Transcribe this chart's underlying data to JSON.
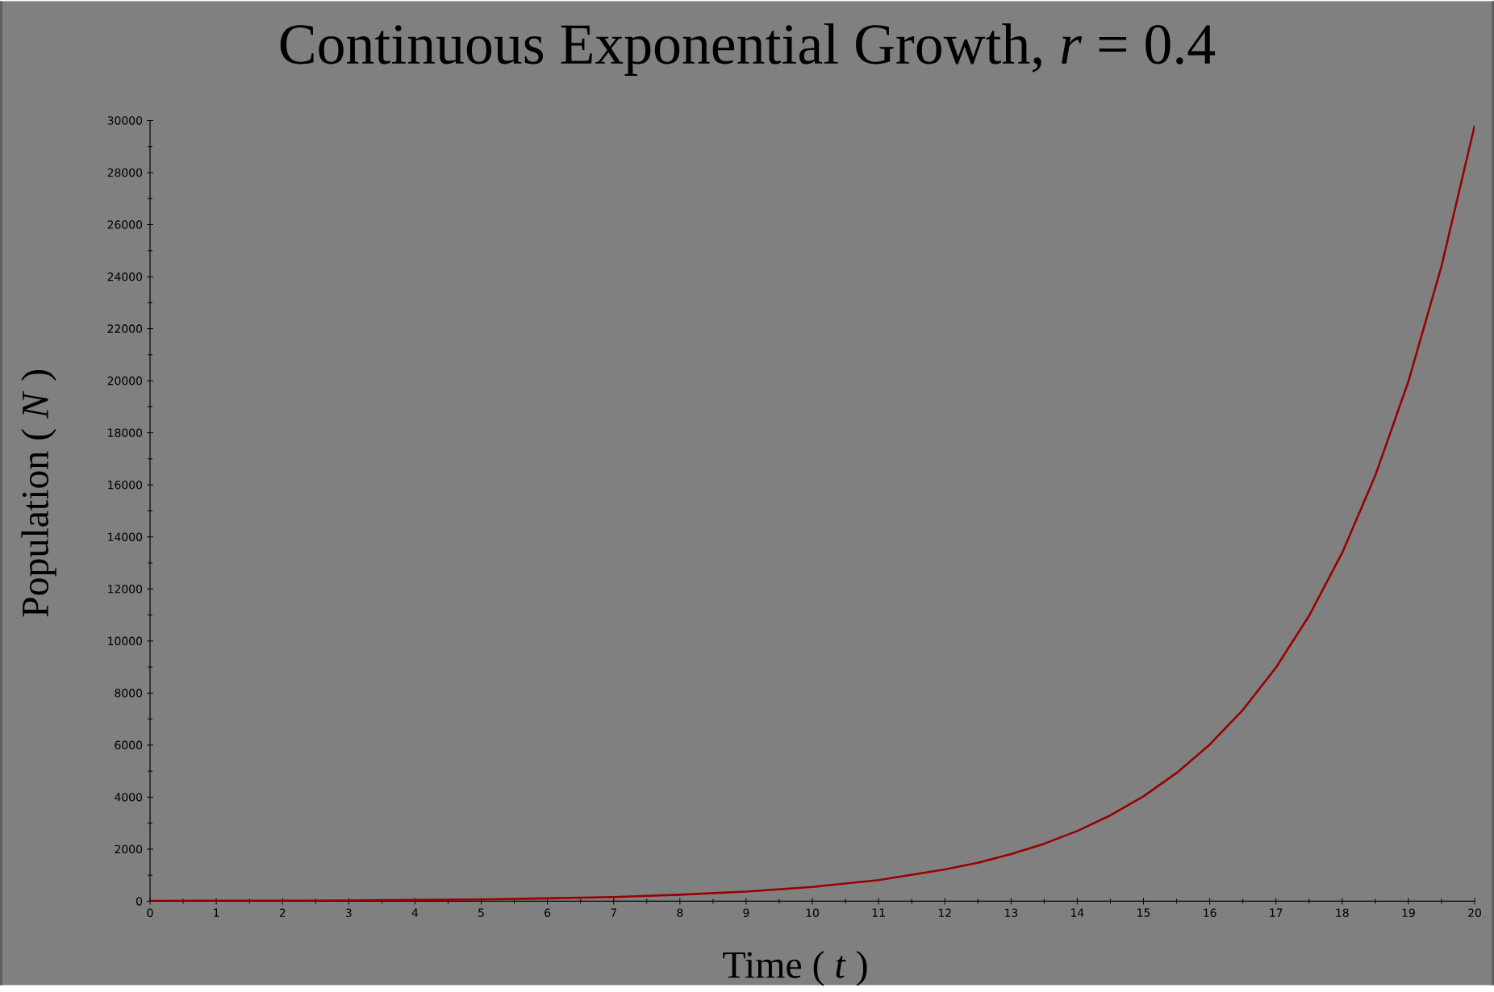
{
  "chart_data": {
    "type": "line",
    "title": "Continuous Exponential Growth, *r* = 0.4",
    "xlabel": "Time ( *t* )",
    "ylabel": "Population ( *N* )",
    "x": [
      0,
      1,
      2,
      3,
      4,
      5,
      6,
      7,
      8,
      9,
      10,
      11,
      12,
      12.5,
      13,
      13.5,
      14,
      14.5,
      15,
      15.5,
      16,
      16.5,
      17,
      17.5,
      18,
      18.5,
      19,
      19.5,
      20
    ],
    "series": [
      {
        "color": "#990000",
        "values": [
          10,
          20,
          20,
          30,
          50,
          70,
          110,
          160,
          250,
          370,
          550,
          810,
          1220,
          1480,
          1810,
          2210,
          2700,
          3300,
          4030,
          4930,
          6020,
          7350,
          8980,
          10970,
          13390,
          16360,
          19980,
          24410,
          29810
        ]
      }
    ],
    "xlim": [
      0,
      20
    ],
    "xticks": [
      0,
      1,
      2,
      3,
      4,
      5,
      6,
      7,
      8,
      9,
      10,
      11,
      12,
      13,
      14,
      15,
      16,
      17,
      18,
      19,
      20
    ],
    "ylim": [
      0,
      30000
    ],
    "yticks": [
      0,
      2000,
      4000,
      6000,
      8000,
      10000,
      12000,
      14000,
      16000,
      18000,
      20000,
      22000,
      24000,
      26000,
      28000,
      30000
    ],
    "grid": false,
    "marker": "none",
    "line_style": "solid"
  }
}
